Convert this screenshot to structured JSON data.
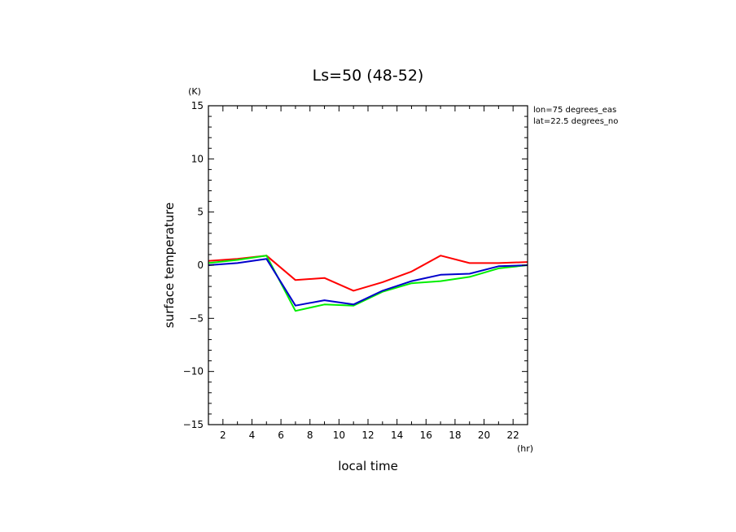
{
  "chart_data": {
    "type": "line",
    "title": "Ls=50 (48-52)",
    "xlabel": "local time",
    "ylabel": "surface temperature",
    "xunit": "(hr)",
    "yunit": "(K)",
    "xlim": [
      1,
      23
    ],
    "ylim": [
      -15,
      15
    ],
    "xticks": [
      2,
      4,
      6,
      8,
      10,
      12,
      14,
      16,
      18,
      20,
      22
    ],
    "yticks": [
      -15,
      -10,
      -5,
      0,
      5,
      10,
      15
    ],
    "grid": false,
    "annotations": [
      "lon=75 degrees_eas",
      "lat=22.5 degrees_no"
    ],
    "x": [
      1,
      3,
      5,
      7,
      9,
      11,
      13,
      15,
      17,
      19,
      21,
      23
    ],
    "series": [
      {
        "color": "#ff0000",
        "values": [
          0.4,
          0.6,
          0.9,
          -1.4,
          -1.2,
          -2.4,
          -1.6,
          -0.6,
          0.9,
          0.2,
          0.2,
          0.3
        ]
      },
      {
        "color": "#00ee00",
        "values": [
          0.2,
          0.5,
          0.9,
          -4.3,
          -3.7,
          -3.8,
          -2.5,
          -1.7,
          -1.5,
          -1.1,
          -0.3,
          0.0
        ]
      },
      {
        "color": "#0000cc",
        "values": [
          0.0,
          0.2,
          0.6,
          -3.8,
          -3.3,
          -3.7,
          -2.4,
          -1.5,
          -0.9,
          -0.8,
          -0.1,
          0.0
        ]
      }
    ]
  }
}
